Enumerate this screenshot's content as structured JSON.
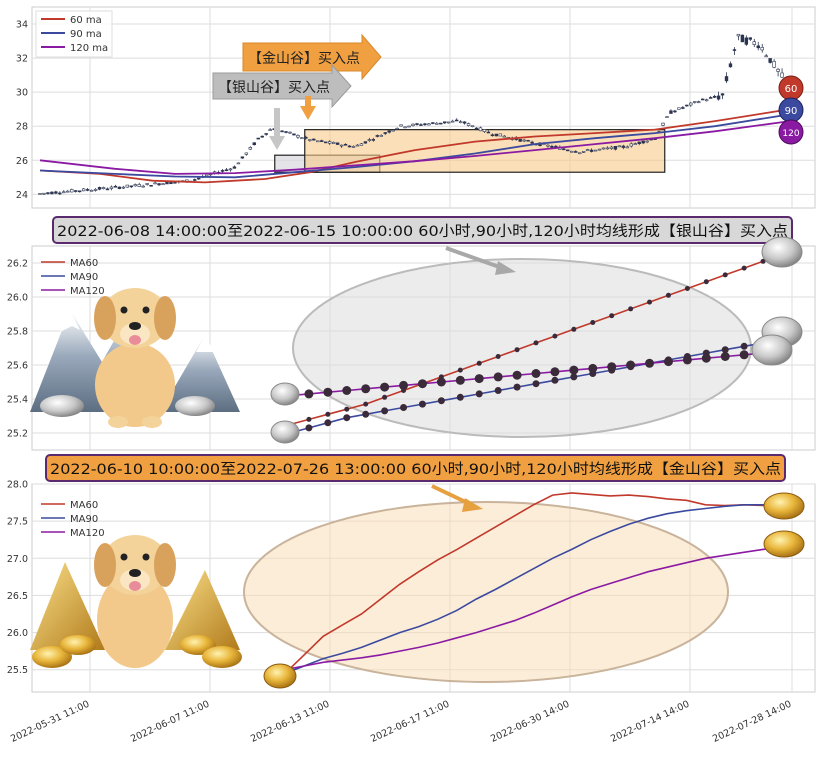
{
  "chart_data": [
    {
      "type": "candlestick",
      "panel": "top",
      "ylim": [
        23.2,
        35
      ],
      "yticks": [
        24,
        26,
        28,
        30,
        32,
        34
      ],
      "legend": [
        "60 ma",
        "90 ma",
        "120 ma"
      ],
      "legend_position": "top-left",
      "ma_badges": [
        "60",
        "90",
        "120"
      ],
      "annotations": [
        {
          "label": "【金山谷】买入点",
          "color": "#f0a040"
        },
        {
          "label": "【银山谷】买入点",
          "color": "#bdbdbd"
        }
      ],
      "regions": [
        {
          "name": "银山谷",
          "x_from": "2022-06-08 14:00",
          "x_to": "2022-06-15 10:00",
          "y_from": 25.3,
          "y_to": 26.3
        },
        {
          "name": "金山谷",
          "x_from": "2022-06-10 10:00",
          "x_to": "2022-07-26 13:00",
          "y_from": 25.3,
          "y_to": 27.8
        }
      ],
      "series": [
        {
          "name": "60 ma",
          "color": "#c0392b",
          "points": [
            [
              0,
              25.4
            ],
            [
              0.08,
              25.2
            ],
            [
              0.15,
              24.8
            ],
            [
              0.22,
              24.7
            ],
            [
              0.3,
              24.9
            ],
            [
              0.36,
              25.3
            ],
            [
              0.42,
              25.9
            ],
            [
              0.5,
              26.6
            ],
            [
              0.58,
              27.1
            ],
            [
              0.66,
              27.4
            ],
            [
              0.74,
              27.6
            ],
            [
              0.82,
              27.8
            ],
            [
              0.9,
              28.3
            ],
            [
              1,
              29.0
            ]
          ]
        },
        {
          "name": "90 ma",
          "color": "#3b4a9e",
          "points": [
            [
              0,
              25.4
            ],
            [
              0.1,
              25.2
            ],
            [
              0.18,
              25.05
            ],
            [
              0.26,
              25.0
            ],
            [
              0.34,
              25.3
            ],
            [
              0.42,
              25.6
            ],
            [
              0.5,
              25.95
            ],
            [
              0.58,
              26.4
            ],
            [
              0.66,
              26.95
            ],
            [
              0.74,
              27.3
            ],
            [
              0.82,
              27.6
            ],
            [
              0.9,
              28.0
            ],
            [
              1,
              28.7
            ]
          ]
        },
        {
          "name": "120 ma",
          "color": "#8b1aa3",
          "points": [
            [
              0,
              26.0
            ],
            [
              0.1,
              25.5
            ],
            [
              0.18,
              25.2
            ],
            [
              0.26,
              25.25
            ],
            [
              0.34,
              25.45
            ],
            [
              0.42,
              25.7
            ],
            [
              0.5,
              25.95
            ],
            [
              0.58,
              26.25
            ],
            [
              0.66,
              26.6
            ],
            [
              0.74,
              26.95
            ],
            [
              0.82,
              27.3
            ],
            [
              0.9,
              27.7
            ],
            [
              1,
              28.3
            ]
          ]
        }
      ]
    },
    {
      "type": "line",
      "panel": "middle",
      "title": "2022-06-08 14:00:00至2022-06-15 10:00:00 60小时,90小时,120小时均线形成【银山谷】买入点",
      "ylim": [
        25.1,
        26.3
      ],
      "yticks": [
        25.2,
        25.4,
        25.6,
        25.8,
        26.0,
        26.2
      ],
      "legend_position": "top-left",
      "series": [
        {
          "name": "MA60",
          "color": "#c0392b",
          "values": [
            25.25,
            25.28,
            25.31,
            25.34,
            25.37,
            25.41,
            25.45,
            25.49,
            25.53,
            25.57,
            25.61,
            25.65,
            25.69,
            25.73,
            25.77,
            25.81,
            25.85,
            25.89,
            25.93,
            25.97,
            26.01,
            26.05,
            26.09,
            26.13,
            26.17,
            26.21,
            26.25
          ]
        },
        {
          "name": "MA90",
          "color": "#3b4a9e",
          "values": [
            25.2,
            25.23,
            25.26,
            25.29,
            25.31,
            25.33,
            25.35,
            25.37,
            25.39,
            25.41,
            25.43,
            25.45,
            25.47,
            25.49,
            25.51,
            25.53,
            25.55,
            25.57,
            25.59,
            25.61,
            25.63,
            25.65,
            25.67,
            25.69,
            25.71,
            25.73,
            25.75
          ]
        },
        {
          "name": "MA120",
          "color": "#8b1aa3",
          "values": [
            25.42,
            25.43,
            25.44,
            25.45,
            25.46,
            25.47,
            25.48,
            25.49,
            25.5,
            25.51,
            25.52,
            25.53,
            25.54,
            25.55,
            25.56,
            25.57,
            25.58,
            25.59,
            25.6,
            25.61,
            25.62,
            25.63,
            25.64,
            25.65,
            25.66,
            25.67,
            25.68
          ]
        }
      ]
    },
    {
      "type": "line",
      "panel": "bottom",
      "title": "2022-06-10 10:00:00至2022-07-26 13:00:00 60小时,90小时,120小时均线形成【金山谷】买入点",
      "ylim": [
        25.2,
        28.0
      ],
      "yticks": [
        25.5,
        26.0,
        26.5,
        27.0,
        27.5,
        28.0
      ],
      "xticks": [
        "2022-05-31 11:00",
        "2022-06-07 11:00",
        "2022-06-13 11:00",
        "2022-06-17 11:00",
        "2022-06-30 14:00",
        "2022-07-14 14:00",
        "2022-07-28 14:00"
      ],
      "legend_position": "top-left",
      "series": [
        {
          "name": "MA60",
          "color": "#c0392b",
          "values": [
            25.45,
            25.7,
            25.95,
            26.1,
            26.25,
            26.45,
            26.65,
            26.82,
            26.98,
            27.12,
            27.27,
            27.42,
            27.57,
            27.72,
            27.85,
            27.88,
            27.86,
            27.84,
            27.85,
            27.83,
            27.8,
            27.78,
            27.72,
            27.71,
            27.72,
            27.71,
            27.7
          ]
        },
        {
          "name": "MA90",
          "color": "#3b4a9e",
          "values": [
            25.45,
            25.55,
            25.65,
            25.72,
            25.8,
            25.9,
            26.0,
            26.08,
            26.18,
            26.3,
            26.45,
            26.58,
            26.72,
            26.86,
            27.0,
            27.12,
            27.25,
            27.36,
            27.46,
            27.54,
            27.6,
            27.64,
            27.67,
            27.7,
            27.72,
            27.72,
            27.7
          ]
        },
        {
          "name": "MA120",
          "color": "#8b1aa3",
          "values": [
            25.5,
            25.55,
            25.6,
            25.63,
            25.66,
            25.7,
            25.75,
            25.8,
            25.86,
            25.93,
            26.0,
            26.08,
            26.16,
            26.26,
            26.37,
            26.48,
            26.58,
            26.66,
            26.74,
            26.82,
            26.88,
            26.94,
            27.0,
            27.04,
            27.08,
            27.12,
            27.15
          ]
        }
      ]
    }
  ]
}
